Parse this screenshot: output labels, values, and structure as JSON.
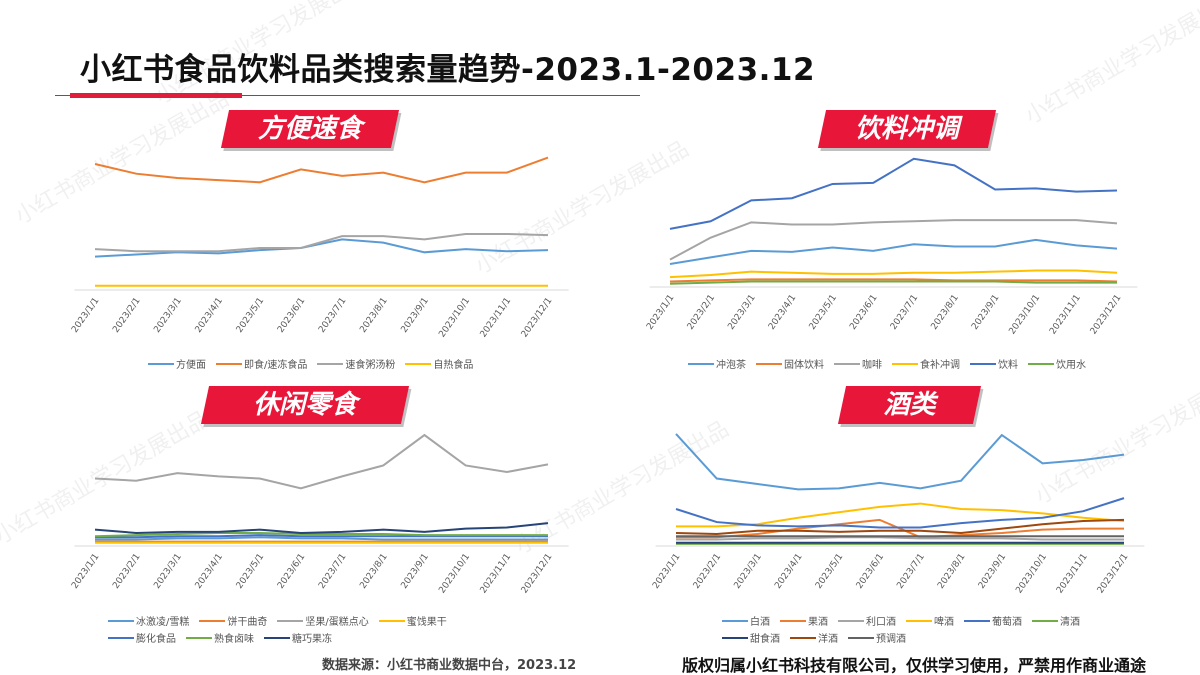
{
  "title": "小红书食品饮料品类搜索量趋势-2023.1-2023.12",
  "watermark": "小红书商业学习发展出品",
  "source": "数据来源：小红书商业数据中台，2023.12",
  "copyright": "版权归属小红书科技有限公司，仅供学习使用，严禁用作商业通途",
  "chart_data": [
    {
      "type": "line",
      "title": "方便速食",
      "ylim": [
        0,
        130
      ],
      "x": [
        "2023/1/1",
        "2023/2/1",
        "2023/3/1",
        "2023/4/1",
        "2023/5/1",
        "2023/6/1",
        "2023/7/1",
        "2023/8/1",
        "2023/9/1",
        "2023/10/1",
        "2023/11/1",
        "2023/12/1"
      ],
      "series": [
        {
          "name": "方便面",
          "color": "#5b9bd5",
          "values": [
            31,
            33,
            35,
            34,
            37,
            39,
            47,
            44,
            35,
            38,
            36,
            37
          ]
        },
        {
          "name": "即食/速冻食品",
          "color": "#ed7d31",
          "values": [
            117,
            108,
            104,
            102,
            100,
            112,
            106,
            109,
            100,
            109,
            109,
            123
          ]
        },
        {
          "name": "速食粥汤粉",
          "color": "#a5a5a5",
          "values": [
            38,
            36,
            36,
            36,
            39,
            39,
            50,
            50,
            47,
            52,
            52,
            51
          ]
        },
        {
          "name": "自热食品",
          "color": "#ffc000",
          "values": [
            4,
            4,
            4,
            4,
            4,
            4,
            4,
            4,
            4,
            4,
            4,
            4
          ]
        }
      ]
    },
    {
      "type": "line",
      "title": "饮料冲调",
      "ylim": [
        0,
        125
      ],
      "x": [
        "2023/1/1",
        "2023/2/1",
        "2023/3/1",
        "2023/4/1",
        "2023/5/1",
        "2023/6/1",
        "2023/7/1",
        "2023/8/1",
        "2023/9/1",
        "2023/10/1",
        "2023/11/1",
        "2023/12/1"
      ],
      "series": [
        {
          "name": "冲泡茶",
          "color": "#5b9bd5",
          "values": [
            21,
            27,
            33,
            32,
            36,
            33,
            39,
            37,
            37,
            43,
            38,
            35
          ]
        },
        {
          "name": "固体饮料",
          "color": "#ed7d31",
          "values": [
            5,
            6,
            7,
            7,
            7,
            7,
            7,
            6,
            6,
            6,
            6,
            5
          ]
        },
        {
          "name": "咖啡",
          "color": "#a5a5a5",
          "values": [
            25,
            45,
            59,
            57,
            57,
            59,
            60,
            61,
            61,
            61,
            61,
            58
          ]
        },
        {
          "name": "食补冲调",
          "color": "#ffc000",
          "values": [
            9,
            11,
            14,
            13,
            12,
            12,
            13,
            13,
            14,
            15,
            15,
            13
          ]
        },
        {
          "name": "饮料",
          "color": "#4472c4",
          "values": [
            53,
            60,
            79,
            81,
            94,
            95,
            117,
            111,
            89,
            90,
            87,
            88
          ]
        },
        {
          "name": "饮用水",
          "color": "#70ad47",
          "values": [
            3,
            4,
            5,
            5,
            5,
            5,
            5,
            5,
            5,
            4,
            4,
            4
          ]
        }
      ]
    },
    {
      "type": "line",
      "title": "休闲零食",
      "ylim": [
        0,
        125
      ],
      "x": [
        "2023/1/1",
        "2023/2/1",
        "2023/3/1",
        "2023/4/1",
        "2023/5/1",
        "2023/6/1",
        "2023/7/1",
        "2023/8/1",
        "2023/9/1",
        "2023/10/1",
        "2023/11/1",
        "2023/12/1"
      ],
      "series": [
        {
          "name": "冰激凌/雪糕",
          "color": "#5b9bd5",
          "values": [
            6,
            6,
            7,
            7,
            8,
            7,
            7,
            6,
            6,
            6,
            6,
            6
          ]
        },
        {
          "name": "饼干曲奇",
          "color": "#ed7d31",
          "values": [
            4,
            4,
            4,
            4,
            4,
            4,
            4,
            4,
            4,
            4,
            4,
            4
          ]
        },
        {
          "name": "坚果/蛋糕点心",
          "color": "#a5a5a5",
          "values": [
            62,
            60,
            67,
            64,
            62,
            53,
            64,
            74,
            102,
            74,
            68,
            75
          ]
        },
        {
          "name": "蜜饯果干",
          "color": "#ffc000",
          "values": [
            3,
            3,
            3,
            3,
            3,
            3,
            3,
            3,
            3,
            3,
            3,
            3
          ]
        },
        {
          "name": "膨化食品",
          "color": "#4472c4",
          "values": [
            8,
            8,
            9,
            9,
            10,
            9,
            9,
            9,
            9,
            9,
            9,
            9
          ]
        },
        {
          "name": "熟食卤味",
          "color": "#70ad47",
          "values": [
            9,
            10,
            11,
            12,
            12,
            11,
            11,
            11,
            10,
            10,
            10,
            10
          ]
        },
        {
          "name": "糖巧果冻",
          "color": "#264478",
          "values": [
            15,
            12,
            13,
            13,
            15,
            12,
            13,
            15,
            13,
            16,
            17,
            21
          ]
        }
      ]
    },
    {
      "type": "line",
      "title": "酒类",
      "ylim": [
        0,
        125
      ],
      "x": [
        "2023/1/1",
        "2023/2/1",
        "2023/3/1",
        "2023/4/1",
        "2023/5/1",
        "2023/6/1",
        "2023/7/1",
        "2023/8/1",
        "2023/9/1",
        "2023/10/1",
        "2023/11/1",
        "2023/12/1"
      ],
      "series": [
        {
          "name": "白酒",
          "color": "#5b9bd5",
          "values": [
            103,
            62,
            57,
            52,
            53,
            58,
            53,
            60,
            102,
            76,
            79,
            84
          ]
        },
        {
          "name": "果酒",
          "color": "#ed7d31",
          "values": [
            8,
            8,
            11,
            16,
            20,
            24,
            8,
            10,
            12,
            15,
            16,
            16
          ]
        },
        {
          "name": "利口酒",
          "color": "#a5a5a5",
          "values": [
            6,
            6,
            7,
            7,
            8,
            8,
            7,
            7,
            7,
            6,
            6,
            6
          ]
        },
        {
          "name": "啤酒",
          "color": "#ffc000",
          "values": [
            18,
            18,
            20,
            26,
            31,
            36,
            39,
            34,
            33,
            30,
            26,
            23
          ]
        },
        {
          "name": "葡萄酒",
          "color": "#4472c4",
          "values": [
            34,
            22,
            19,
            18,
            19,
            17,
            17,
            21,
            24,
            26,
            32,
            44
          ]
        },
        {
          "name": "清酒",
          "color": "#70ad47",
          "values": [
            2,
            2,
            2,
            2,
            2,
            2,
            2,
            2,
            2,
            2,
            2,
            2
          ]
        },
        {
          "name": "甜食酒",
          "color": "#264478",
          "values": [
            3,
            3,
            3,
            3,
            3,
            3,
            3,
            3,
            3,
            3,
            3,
            3
          ]
        },
        {
          "name": "洋酒",
          "color": "#9e480e",
          "values": [
            12,
            11,
            14,
            14,
            13,
            14,
            14,
            12,
            16,
            20,
            23,
            24
          ]
        },
        {
          "name": "预调酒",
          "color": "#636363",
          "values": [
            9,
            9,
            9,
            9,
            9,
            9,
            9,
            9,
            9,
            9,
            9,
            9
          ]
        }
      ]
    }
  ]
}
